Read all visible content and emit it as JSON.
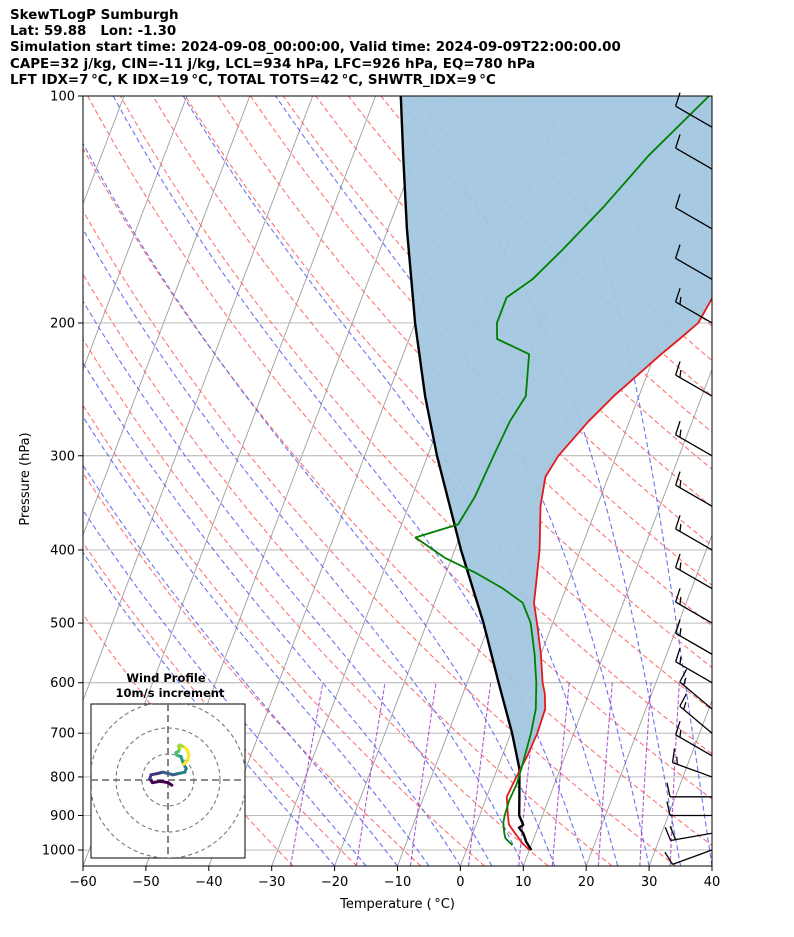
{
  "header": {
    "lines": [
      "SkewTLogP Sumburgh",
      "Lat: 59.88   Lon: -1.30",
      "Simulation start time: 2024-09-08_00:00:00, Valid time: 2024-09-09T22:00:00.00",
      "CAPE=32 j/kg, CIN=-11 j/kg, LCL=934 hPa, LFC=926 hPa, EQ=780 hPa",
      "LFT IDX=7 °C, K IDX=19 °C, TOTAL TOTS=42 °C, SHWTR_IDX=9 °C"
    ]
  },
  "chart_data": {
    "type": "skew-t",
    "xlabel": "Temperature ( °C)",
    "ylabel": "Pressure (hPa)",
    "x_ticks": [
      -60,
      -50,
      -40,
      -30,
      -20,
      -10,
      0,
      10,
      20,
      30,
      40
    ],
    "y_ticks": [
      100,
      200,
      300,
      400,
      500,
      600,
      700,
      800,
      900,
      1000
    ],
    "xlim": [
      -60,
      40
    ],
    "ylim": [
      1050,
      100
    ],
    "y_scale": "log",
    "grid": true,
    "colors": {
      "temperature": "#e31a1c",
      "dewpoint": "#008000",
      "parcel": "#000000",
      "cape_fill": "#a2c6df",
      "dry_adiabat": "#ff5a5a",
      "moist_adiabat": "#4d5cf0",
      "mixing_ratio": "#9b30c0",
      "isotherm": "#9e9e9e"
    },
    "temperature": [
      [
        1000,
        10.0
      ],
      [
        980,
        8.5
      ],
      [
        950,
        6.7
      ],
      [
        925,
        5.2
      ],
      [
        900,
        4.5
      ],
      [
        850,
        3.2
      ],
      [
        800,
        3.5
      ],
      [
        750,
        4.0
      ],
      [
        700,
        4.2
      ],
      [
        650,
        4.0
      ],
      [
        620,
        3.0
      ],
      [
        600,
        2.0
      ],
      [
        550,
        0.0
      ],
      [
        500,
        -2.5
      ],
      [
        470,
        -4.2
      ],
      [
        450,
        -4.8
      ],
      [
        400,
        -6.5
      ],
      [
        350,
        -9.0
      ],
      [
        320,
        -10.0
      ],
      [
        300,
        -9.2
      ],
      [
        270,
        -6.5
      ],
      [
        250,
        -4.0
      ],
      [
        220,
        1.0
      ],
      [
        210,
        3.0
      ],
      [
        200,
        5.0
      ],
      [
        180,
        6.0
      ],
      [
        170,
        7.0
      ],
      [
        160,
        8.0
      ],
      [
        150,
        11.0
      ],
      [
        140,
        14.0
      ],
      [
        130,
        16.5
      ],
      [
        120,
        20.0
      ],
      [
        110,
        21.0
      ],
      [
        100,
        23.5
      ]
    ],
    "dewpoint": [
      [
        985,
        7.0
      ],
      [
        965,
        5.5
      ],
      [
        950,
        5.0
      ],
      [
        920,
        4.2
      ],
      [
        900,
        4.0
      ],
      [
        860,
        3.8
      ],
      [
        820,
        4.0
      ],
      [
        780,
        3.8
      ],
      [
        700,
        3.2
      ],
      [
        650,
        2.5
      ],
      [
        600,
        1.0
      ],
      [
        550,
        -1.0
      ],
      [
        500,
        -3.5
      ],
      [
        470,
        -6.0
      ],
      [
        450,
        -10.0
      ],
      [
        430,
        -15.0
      ],
      [
        410,
        -21.0
      ],
      [
        385,
        -27.0
      ],
      [
        370,
        -21.0
      ],
      [
        340,
        -20.0
      ],
      [
        300,
        -19.5
      ],
      [
        270,
        -19.0
      ],
      [
        250,
        -18.0
      ],
      [
        220,
        -20.0
      ],
      [
        210,
        -26.0
      ],
      [
        200,
        -27.0
      ],
      [
        185,
        -27.0
      ],
      [
        175,
        -24.0
      ],
      [
        160,
        -21.0
      ],
      [
        140,
        -17.0
      ],
      [
        120,
        -13.0
      ],
      [
        100,
        -7.0
      ]
    ],
    "parcel": [
      [
        1000,
        10.3
      ],
      [
        975,
        9.0
      ],
      [
        950,
        8.0
      ],
      [
        934,
        7.0
      ],
      [
        926,
        7.5
      ],
      [
        900,
        6.3
      ],
      [
        850,
        5.2
      ],
      [
        800,
        4.0
      ],
      [
        780,
        3.5
      ],
      [
        700,
        0.2
      ],
      [
        600,
        -5.0
      ],
      [
        500,
        -11.0
      ],
      [
        400,
        -19.0
      ],
      [
        300,
        -28.5
      ],
      [
        250,
        -34.0
      ],
      [
        200,
        -40.0
      ],
      [
        150,
        -47.0
      ],
      [
        120,
        -52.0
      ],
      [
        100,
        -56.0
      ]
    ],
    "wind_barbs": [
      {
        "p": 1000,
        "speed_kt": 10,
        "dir_deg": 250
      },
      {
        "p": 950,
        "speed_kt": 20,
        "dir_deg": 260
      },
      {
        "p": 900,
        "speed_kt": 10,
        "dir_deg": 270
      },
      {
        "p": 850,
        "speed_kt": 10,
        "dir_deg": 270
      },
      {
        "p": 800,
        "speed_kt": 15,
        "dir_deg": 290
      },
      {
        "p": 750,
        "speed_kt": 15,
        "dir_deg": 300
      },
      {
        "p": 700,
        "speed_kt": 15,
        "dir_deg": 310
      },
      {
        "p": 650,
        "speed_kt": 15,
        "dir_deg": 310
      },
      {
        "p": 600,
        "speed_kt": 15,
        "dir_deg": 300
      },
      {
        "p": 550,
        "speed_kt": 15,
        "dir_deg": 300
      },
      {
        "p": 500,
        "speed_kt": 15,
        "dir_deg": 300
      },
      {
        "p": 450,
        "speed_kt": 15,
        "dir_deg": 300
      },
      {
        "p": 400,
        "speed_kt": 15,
        "dir_deg": 300
      },
      {
        "p": 350,
        "speed_kt": 15,
        "dir_deg": 300
      },
      {
        "p": 300,
        "speed_kt": 15,
        "dir_deg": 300
      },
      {
        "p": 250,
        "speed_kt": 15,
        "dir_deg": 300
      },
      {
        "p": 200,
        "speed_kt": 15,
        "dir_deg": 300
      },
      {
        "p": 175,
        "speed_kt": 10,
        "dir_deg": 300
      },
      {
        "p": 150,
        "speed_kt": 10,
        "dir_deg": 300
      },
      {
        "p": 125,
        "speed_kt": 10,
        "dir_deg": 300
      },
      {
        "p": 110,
        "speed_kt": 10,
        "dir_deg": 300
      }
    ],
    "inset": {
      "title": "Wind Profile",
      "subtitle": "10m/s increment",
      "ring_increment_ms": 10,
      "hodograph_uv": [
        [
          1.5,
          -2.0
        ],
        [
          0.0,
          -1.0
        ],
        [
          -3.0,
          -0.5
        ],
        [
          -6.0,
          -1.0
        ],
        [
          -7.0,
          0.5
        ],
        [
          -6.5,
          2.0
        ],
        [
          -4.0,
          2.5
        ],
        [
          -2.0,
          3.0
        ],
        [
          0.0,
          2.5
        ],
        [
          2.0,
          2.0
        ],
        [
          4.0,
          2.5
        ],
        [
          6.5,
          3.0
        ],
        [
          7.0,
          4.5
        ],
        [
          6.0,
          6.0
        ],
        [
          5.5,
          7.5
        ],
        [
          5.0,
          9.0
        ],
        [
          3.5,
          9.5
        ],
        [
          3.0,
          10.5
        ],
        [
          4.0,
          11.0
        ],
        [
          4.5,
          12.0
        ],
        [
          4.0,
          13.0
        ],
        [
          4.5,
          13.5
        ],
        [
          6.5,
          12.5
        ],
        [
          7.5,
          11.5
        ],
        [
          8.0,
          9.5
        ],
        [
          7.5,
          7.5
        ],
        [
          6.0,
          6.0
        ]
      ]
    }
  }
}
